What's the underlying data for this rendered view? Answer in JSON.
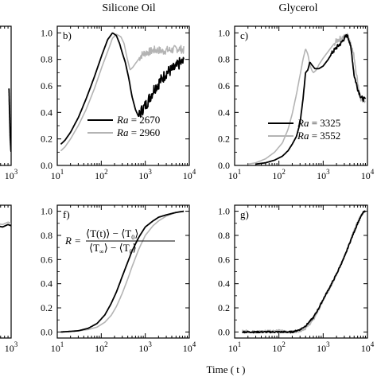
{
  "headers": {
    "left": "Silicone Oil",
    "right": "Glycerol"
  },
  "x_axis_label": "Time ( t )",
  "colors": {
    "series_dark": "#000000",
    "series_light": "#b4b4b4",
    "axis": "#000000"
  },
  "chart_data": [
    {
      "id": "b",
      "type": "line",
      "panel_label": "b)",
      "xscale": "log",
      "xlim": [
        10,
        10000
      ],
      "ylim": [
        0,
        1.05
      ],
      "yticks": [
        "0.0",
        "0.2",
        "0.4",
        "0.6",
        "0.8",
        "1.0"
      ],
      "xticks": [
        "10",
        "10",
        "10",
        "10"
      ],
      "xtick_exps": [
        "1",
        "2",
        "3",
        "4"
      ],
      "legend": {
        "placement": "center-right",
        "entries": [
          {
            "var": "Ra",
            "eq": " = 2670"
          },
          {
            "var": "Ra",
            "eq": " = 2960"
          }
        ]
      },
      "series": [
        {
          "name": "Ra = 2670",
          "color": "dark",
          "noise": 0.045,
          "noise_from": 700,
          "x": [
            12,
            15,
            20,
            30,
            45,
            70,
            100,
            140,
            180,
            220,
            260,
            300,
            350,
            420,
            500,
            600,
            700,
            850,
            1000,
            1300,
            1600,
            2000,
            2500,
            3000,
            4000,
            5000,
            6000,
            7500
          ],
          "y": [
            0.16,
            0.19,
            0.25,
            0.36,
            0.5,
            0.67,
            0.82,
            0.95,
            1.0,
            0.98,
            0.92,
            0.85,
            0.78,
            0.66,
            0.52,
            0.42,
            0.37,
            0.42,
            0.45,
            0.52,
            0.58,
            0.62,
            0.66,
            0.7,
            0.72,
            0.74,
            0.77,
            0.78
          ]
        },
        {
          "name": "Ra = 2960",
          "color": "light",
          "noise": 0.03,
          "noise_from": 700,
          "x": [
            12,
            15,
            20,
            30,
            45,
            70,
            100,
            140,
            180,
            220,
            280,
            330,
            380,
            450,
            520,
            600,
            700,
            800,
            1000,
            1300,
            1600,
            2000,
            2500,
            3000,
            4000,
            5000,
            6000,
            7500
          ],
          "y": [
            0.11,
            0.14,
            0.2,
            0.3,
            0.42,
            0.58,
            0.73,
            0.86,
            0.96,
            0.99,
            0.97,
            0.92,
            0.82,
            0.72,
            0.74,
            0.77,
            0.8,
            0.83,
            0.85,
            0.86,
            0.87,
            0.87,
            0.86,
            0.87,
            0.87,
            0.88,
            0.88,
            0.87
          ]
        }
      ]
    },
    {
      "id": "c",
      "type": "line",
      "panel_label": "c)",
      "xscale": "log",
      "xlim": [
        10,
        10000
      ],
      "ylim": [
        0,
        1.05
      ],
      "yticks": [
        "0.0",
        "0.2",
        "0.4",
        "0.6",
        "0.8",
        "1.0"
      ],
      "xticks": [
        "10",
        "10",
        "10",
        "10"
      ],
      "xtick_exps": [
        "1",
        "2",
        "3",
        "4"
      ],
      "legend": {
        "placement": "lower-right",
        "entries": [
          {
            "var": "Ra",
            "eq": " = 3325"
          },
          {
            "var": "Ra",
            "eq": " = 3552"
          }
        ]
      },
      "series": [
        {
          "name": "Ra = 3325",
          "color": "dark",
          "noise": 0.015,
          "noise_from": 1500,
          "x": [
            30,
            50,
            80,
            120,
            160,
            200,
            250,
            300,
            350,
            400,
            450,
            500,
            550,
            650,
            800,
            1000,
            1300,
            1600,
            2000,
            2500,
            3000,
            3500,
            4000,
            4500,
            5000,
            6000,
            7000,
            8000,
            9000
          ],
          "y": [
            0.01,
            0.02,
            0.04,
            0.07,
            0.11,
            0.16,
            0.22,
            0.32,
            0.5,
            0.7,
            0.72,
            0.78,
            0.76,
            0.73,
            0.73,
            0.75,
            0.8,
            0.85,
            0.89,
            0.92,
            0.96,
            0.98,
            0.93,
            0.82,
            0.68,
            0.58,
            0.52,
            0.5,
            0.5
          ]
        },
        {
          "name": "Ra = 3552",
          "color": "light",
          "noise": 0.02,
          "noise_from": 1800,
          "x": [
            20,
            30,
            50,
            80,
            120,
            160,
            200,
            250,
            300,
            350,
            400,
            450,
            500,
            550,
            600,
            700,
            800,
            1000,
            1300,
            1600,
            2000,
            2500,
            3000,
            3500,
            4000,
            5000,
            6000,
            7000,
            8000,
            9000
          ],
          "y": [
            0.01,
            0.02,
            0.05,
            0.1,
            0.17,
            0.27,
            0.39,
            0.54,
            0.68,
            0.8,
            0.88,
            0.84,
            0.76,
            0.72,
            0.7,
            0.72,
            0.76,
            0.81,
            0.86,
            0.9,
            0.94,
            0.96,
            0.97,
            0.98,
            0.95,
            0.82,
            0.63,
            0.5,
            0.48,
            0.5
          ]
        }
      ]
    },
    {
      "id": "f",
      "type": "line",
      "panel_label": "f)",
      "xscale": "log",
      "xlim": [
        10,
        10000
      ],
      "ylim": [
        -0.05,
        1.05
      ],
      "yticks": [
        "0.0",
        "0.2",
        "0.4",
        "0.6",
        "0.8",
        "1.0"
      ],
      "xticks": [
        "10",
        "10",
        "10",
        "10"
      ],
      "xtick_exps": [
        "1",
        "2",
        "3",
        "4"
      ],
      "formula": {
        "lhs": "R =",
        "num_a": "⟨T(t)⟩",
        "num_b": "⟨T",
        "num_sub": "0",
        "num_c": "⟩",
        "den_a": "⟨T",
        "den_sub_a": "∞",
        "den_b": "⟩ − ⟨T",
        "den_sub_b": "0",
        "den_c": "⟩"
      },
      "series": [
        {
          "name": "dark",
          "color": "dark",
          "noise": 0,
          "x": [
            12,
            20,
            30,
            50,
            80,
            120,
            170,
            220,
            300,
            400,
            500,
            700,
            1000,
            1500,
            2000,
            3000,
            5000,
            7500
          ],
          "y": [
            0.0,
            0.005,
            0.01,
            0.03,
            0.07,
            0.14,
            0.24,
            0.33,
            0.46,
            0.58,
            0.67,
            0.78,
            0.87,
            0.92,
            0.95,
            0.97,
            0.99,
            1.0
          ]
        },
        {
          "name": "light",
          "color": "light",
          "noise": 0,
          "x": [
            12,
            20,
            30,
            50,
            80,
            120,
            170,
            220,
            300,
            400,
            500,
            700,
            1000,
            1500,
            2000,
            3000,
            5000,
            7500
          ],
          "y": [
            0.0,
            0.005,
            0.01,
            0.02,
            0.04,
            0.08,
            0.14,
            0.21,
            0.32,
            0.44,
            0.54,
            0.68,
            0.8,
            0.88,
            0.92,
            0.96,
            0.99,
            1.0
          ]
        }
      ]
    },
    {
      "id": "g",
      "type": "line",
      "panel_label": "g)",
      "xscale": "log",
      "xlim": [
        10,
        10000
      ],
      "ylim": [
        -0.05,
        1.05
      ],
      "yticks": [
        "0.0",
        "0.2",
        "0.4",
        "0.6",
        "0.8",
        "1.0"
      ],
      "xticks": [
        "10",
        "10",
        "10",
        "10"
      ],
      "xtick_exps": [
        "1",
        "2",
        "3",
        "4"
      ],
      "series": [
        {
          "name": "dark",
          "color": "dark",
          "noise": 0.006,
          "noise_from": 10,
          "x": [
            15,
            30,
            60,
            100,
            200,
            300,
            400,
            600,
            800,
            1000,
            1500,
            2000,
            3000,
            4000,
            5000,
            6000,
            7000,
            8000,
            9000
          ],
          "y": [
            0.0,
            0.0,
            0.0,
            0.0,
            0.0,
            0.02,
            0.05,
            0.12,
            0.2,
            0.27,
            0.39,
            0.48,
            0.62,
            0.74,
            0.83,
            0.9,
            0.95,
            0.99,
            1.0
          ]
        },
        {
          "name": "light",
          "color": "light",
          "noise": 0.01,
          "noise_from": 10,
          "x": [
            15,
            30,
            60,
            100,
            200,
            300,
            400,
            600,
            800,
            1000,
            1500,
            2000,
            3000,
            4000,
            5000,
            6000,
            7000,
            8000,
            9000
          ],
          "y": [
            0.01,
            0.0,
            0.01,
            0.01,
            0.0,
            0.01,
            0.03,
            0.1,
            0.19,
            0.26,
            0.38,
            0.48,
            0.62,
            0.74,
            0.84,
            0.91,
            0.96,
            0.99,
            1.0
          ]
        }
      ]
    },
    {
      "id": "a-edge",
      "type": "line",
      "partial": true,
      "xscale": "log",
      "xlim": [
        10,
        1000
      ],
      "ylim": [
        0,
        1.05
      ],
      "xticks": [
        "10"
      ],
      "xtick_exps": [
        "3"
      ],
      "series": [
        {
          "name": "dark",
          "color": "dark",
          "noise": 0,
          "x": [
            930,
            950,
            970,
            990,
            1000
          ],
          "y": [
            0.58,
            0.4,
            0.22,
            0.12,
            0.1
          ]
        },
        {
          "name": "light",
          "color": "light",
          "noise": 0,
          "x": [
            930,
            960,
            990,
            1000
          ],
          "y": [
            0.5,
            0.2,
            0.11,
            0.1
          ]
        }
      ]
    },
    {
      "id": "e-edge",
      "type": "line",
      "partial": true,
      "xscale": "log",
      "xlim": [
        10,
        1000
      ],
      "ylim": [
        -0.05,
        1.05
      ],
      "xticks": [
        "10"
      ],
      "xtick_exps": [
        "3"
      ],
      "series": [
        {
          "name": "dark",
          "color": "dark",
          "noise": 0,
          "x": [
            600,
            750,
            900,
            1000
          ],
          "y": [
            0.88,
            0.87,
            0.89,
            0.88
          ]
        },
        {
          "name": "light",
          "color": "light",
          "noise": 0,
          "x": [
            600,
            750,
            900,
            1000
          ],
          "y": [
            0.9,
            0.89,
            0.91,
            0.9
          ]
        }
      ]
    }
  ]
}
